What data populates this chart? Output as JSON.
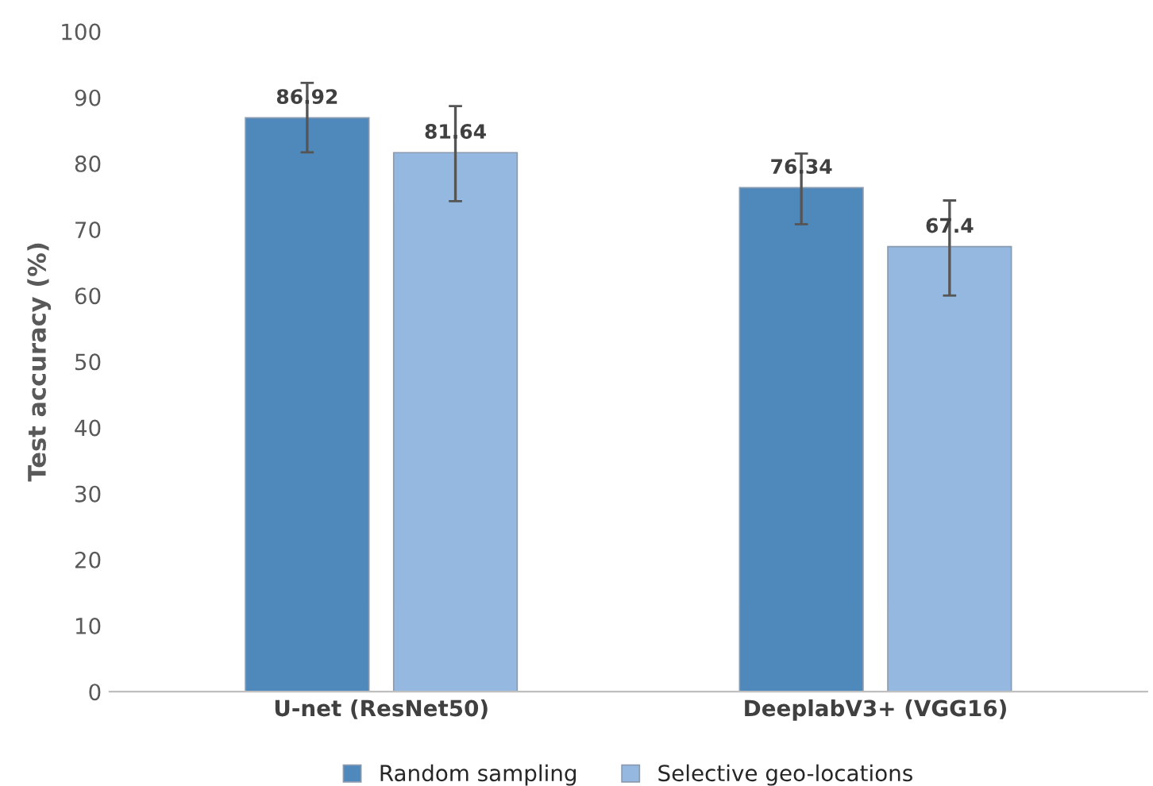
{
  "chart_data": {
    "type": "bar",
    "ylabel": "Test accuracy (%)",
    "categories": [
      "U-net (ResNet50)",
      "DeeplabV3+ (VGG16)"
    ],
    "series": [
      {
        "name": "Random sampling",
        "color": "#4f88bb",
        "values": [
          86.92,
          76.34
        ],
        "errors": [
          [
            81.7,
            92.2
          ],
          [
            70.8,
            81.5
          ]
        ]
      },
      {
        "name": "Selective geo-locations",
        "color": "#95b8e0",
        "values": [
          81.64,
          67.4
        ],
        "errors": [
          [
            74.3,
            88.7
          ],
          [
            60.0,
            74.4
          ]
        ]
      }
    ],
    "ylim": [
      0,
      100
    ],
    "yticks": [
      0,
      10,
      20,
      30,
      40,
      50,
      60,
      70,
      80,
      90,
      100
    ],
    "grid": false,
    "legend": "bottom",
    "data_labels": true
  }
}
